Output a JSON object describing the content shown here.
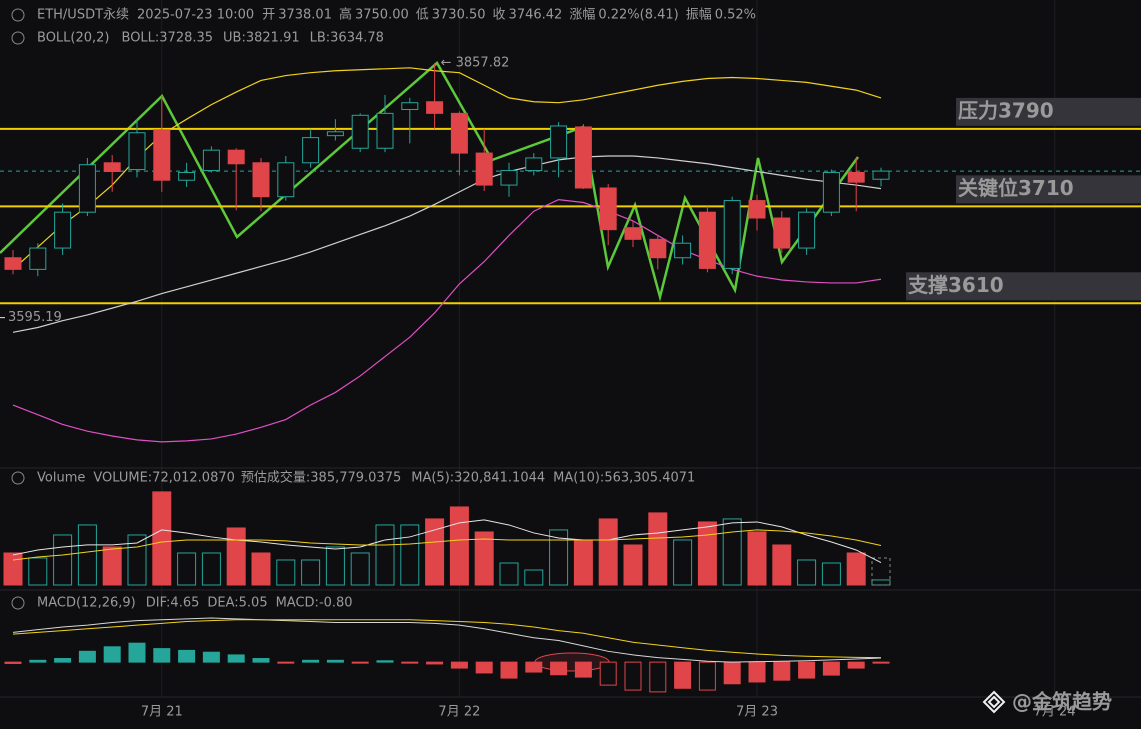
{
  "header": {
    "symbol": "ETH/USDT永续",
    "time": "2025-07-23 10:00",
    "fields": [
      {
        "label": "开",
        "value": "3738.01"
      },
      {
        "label": "高",
        "value": "3750.00"
      },
      {
        "label": "低",
        "value": "3730.50"
      },
      {
        "label": "收",
        "value": "3746.42"
      },
      {
        "label": "涨幅",
        "value": "0.22%(8.41)"
      },
      {
        "label": "振幅",
        "value": "0.52%"
      }
    ]
  },
  "watermark": "@金筑趋势",
  "chart_data": [
    {
      "type": "candlestick",
      "indicator": "BOLL(20,2)",
      "categories": [
        null,
        null,
        null,
        null,
        null,
        null,
        "7月 21",
        null,
        null,
        null,
        null,
        null,
        null,
        null,
        null,
        null,
        null,
        null,
        "7月 22",
        null,
        null,
        null,
        null,
        null,
        null,
        null,
        null,
        null,
        null,
        null,
        "7月 23",
        null,
        null,
        null,
        null,
        null
      ],
      "xtick_extra": "7月 24",
      "open": [
        3657,
        3645,
        3667,
        3704,
        3755,
        3748,
        3789,
        3737,
        3747,
        3768,
        3755,
        3720,
        3755,
        3783,
        3770,
        3770,
        3810,
        3818,
        3806,
        3765,
        3732,
        3747,
        3760,
        3792,
        3729,
        3688,
        3676,
        3657,
        3704,
        3646,
        3716,
        3698,
        3667,
        3704,
        3745,
        3738.01
      ],
      "high": [
        3665,
        3672,
        3713,
        3760,
        3763,
        3800,
        3824,
        3755,
        3772,
        3770,
        3760,
        3762,
        3790,
        3800,
        3806,
        3825,
        3822,
        3857.82,
        3808,
        3790,
        3755,
        3765,
        3797,
        3795,
        3733,
        3695,
        3680,
        3680,
        3710,
        3720,
        3722,
        3705,
        3708,
        3748,
        3760,
        3750
      ],
      "low": [
        3640,
        3638,
        3660,
        3700,
        3725,
        3740,
        3725,
        3730,
        3745,
        3706,
        3705,
        3716,
        3750,
        3778,
        3766,
        3766,
        3775,
        3790,
        3742,
        3726,
        3720,
        3742,
        3740,
        3728,
        3670,
        3668,
        3645,
        3650,
        3642,
        3640,
        3685,
        3662,
        3660,
        3700,
        3705,
        3730.5
      ],
      "close": [
        3645,
        3667,
        3704,
        3753,
        3746,
        3786,
        3737,
        3745,
        3768,
        3754,
        3720,
        3755,
        3781,
        3787,
        3804,
        3806,
        3817,
        3806,
        3765,
        3732,
        3747,
        3760,
        3793,
        3729,
        3686,
        3676,
        3657,
        3672,
        3646,
        3716,
        3698,
        3667,
        3704,
        3745,
        3735,
        3746.42
      ],
      "up_color": "#26a69a",
      "down_color": "#e0454a",
      "ylim": [
        3440,
        3923
      ],
      "series": [
        {
          "name": "BOLL:3728.35",
          "color": "#cfcfcf",
          "values": [
            3580,
            3585,
            3592,
            3598,
            3605,
            3612,
            3620,
            3627,
            3634,
            3641,
            3648,
            3655,
            3663,
            3672,
            3681,
            3690,
            3700,
            3712,
            3725,
            3738,
            3746,
            3752,
            3758,
            3761,
            3762,
            3762,
            3760,
            3757,
            3754,
            3750,
            3746,
            3742,
            3738,
            3735,
            3732,
            3728.35
          ]
        },
        {
          "name": "UB:3821.91",
          "color": "#f2d21b",
          "values": [
            3645,
            3668,
            3691,
            3710,
            3732,
            3760,
            3784,
            3800,
            3815,
            3828,
            3840,
            3845,
            3848,
            3850,
            3851,
            3852,
            3853,
            3850,
            3848,
            3835,
            3822,
            3818,
            3817,
            3820,
            3825,
            3830,
            3835,
            3839,
            3842,
            3843,
            3842,
            3840,
            3838,
            3834,
            3830,
            3821.91
          ]
        },
        {
          "name": "LB:3634.78",
          "color": "#e04fc4",
          "values": [
            3505,
            3495,
            3485,
            3478,
            3473,
            3469,
            3467,
            3468,
            3470,
            3475,
            3482,
            3490,
            3505,
            3518,
            3535,
            3555,
            3575,
            3600,
            3630,
            3653,
            3680,
            3705,
            3717,
            3714,
            3705,
            3695,
            3680,
            3665,
            3655,
            3645,
            3638,
            3634,
            3632,
            3631,
            3631,
            3634.78
          ]
        }
      ],
      "levels": [
        {
          "label": "压力3790",
          "value": 3790,
          "color": "#e8242c"
        },
        {
          "label": "关键位3710",
          "value": 3710,
          "color": "#6fd13b"
        },
        {
          "label": "支撑3610",
          "value": 3610,
          "color": "#6fd13b"
        }
      ],
      "level_line_color": "#f0d000",
      "max_label": "← 3857.82",
      "min_label": {
        "value": 3595.19,
        "label": "3595.19"
      }
    },
    {
      "type": "volume",
      "title": "Volume",
      "legend": "VOLUME:72,012.0870",
      "values": [
        457000,
        386000,
        714000,
        857000,
        543000,
        714000,
        1329000,
        457000,
        457000,
        814000,
        457000,
        357000,
        357000,
        543000,
        457000,
        857000,
        857000,
        943000,
        1114000,
        757000,
        314000,
        214000,
        786000,
        643000,
        943000,
        571000,
        1029000,
        643000,
        900000,
        943000,
        757000,
        571000,
        357000,
        314000,
        457000,
        72012.087
      ],
      "estimate": {
        "label": "预估成交量:385,779.0375",
        "value": 385779.0375
      },
      "ylim": [
        0,
        1670000
      ],
      "series": [
        {
          "name": "MA(5):320,841.1044",
          "color": "#e6e6e6",
          "values": [
            429000,
            500000,
            543000,
            572000,
            572000,
            600000,
            786000,
            743000,
            686000,
            643000,
            614000,
            572000,
            543000,
            514000,
            543000,
            643000,
            686000,
            786000,
            886000,
            929000,
            857000,
            743000,
            671000,
            643000,
            643000,
            714000,
            743000,
            786000,
            829000,
            886000,
            900000,
            829000,
            714000,
            614000,
            500000,
            320841.1044
          ]
        },
        {
          "name": "MA(10):563,305.4071",
          "color": "#f2d21b",
          "values": [
            357000,
            400000,
            429000,
            471000,
            514000,
            543000,
            614000,
            643000,
            643000,
            643000,
            643000,
            629000,
            600000,
            586000,
            571000,
            571000,
            586000,
            614000,
            643000,
            657000,
            643000,
            643000,
            643000,
            643000,
            643000,
            657000,
            671000,
            686000,
            714000,
            757000,
            786000,
            771000,
            743000,
            700000,
            643000,
            563305.4071
          ]
        }
      ]
    },
    {
      "type": "macd",
      "title": "MACD(12,26,9)",
      "legend": "MACD:-0.80",
      "legend_color": "#e04fc4",
      "values": [
        -1.5,
        2,
        4,
        12,
        17,
        21,
        15,
        13,
        11,
        8,
        4,
        -1,
        2,
        2,
        -1,
        1.5,
        -1,
        -2,
        -6.6,
        -12,
        -17.7,
        -11,
        -14,
        -16.6,
        -25.5,
        -31,
        -33,
        -29,
        -31,
        -24,
        -22,
        -20,
        -17.7,
        -14.4,
        -6.6,
        -0.8
      ],
      "ylim": [
        -42,
        80
      ],
      "series": [
        {
          "name": "DIF:4.65",
          "color": "#d8d8d8",
          "values": [
            33,
            36,
            39,
            41,
            44,
            46,
            47,
            48,
            49,
            48,
            47,
            46,
            45,
            44,
            44,
            44,
            44,
            43,
            41,
            37,
            32,
            27,
            24,
            18,
            12,
            8,
            5,
            3,
            1,
            0,
            0.5,
            1,
            1.5,
            2.5,
            3.5,
            4.65
          ]
        },
        {
          "name": "DEA:5.05",
          "color": "#f2d21b",
          "values": [
            31,
            33,
            35,
            37,
            39,
            41,
            43,
            45,
            46,
            47,
            47,
            47,
            47,
            47,
            47,
            47,
            47,
            46,
            45,
            44,
            42,
            39,
            35,
            32,
            27,
            22,
            19,
            16,
            13,
            11,
            9,
            7.5,
            6.5,
            5.8,
            5.3,
            5.05
          ]
        }
      ]
    }
  ]
}
